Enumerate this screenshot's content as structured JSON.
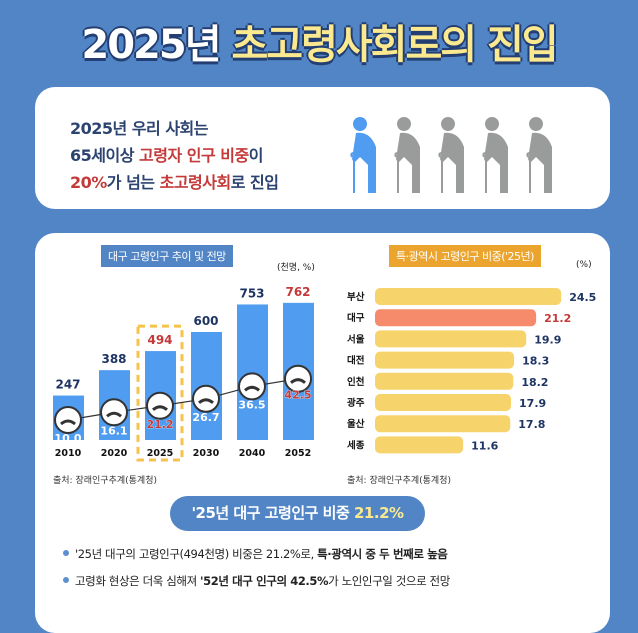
{
  "title": {
    "part1": "2025년",
    "part2": "초고령사회로의 진입"
  },
  "intro": {
    "line1": "2025년 우리 사회는",
    "line2_a": "65세이상 ",
    "line2_b": "고령자 인구 비중",
    "line2_c": "이",
    "line3_a": "20%",
    "line3_b": "가 넘는 ",
    "line3_c": "초고령사회",
    "line3_d": "로 진입",
    "people_icons": [
      "elderly-person-icon-highlighted",
      "elderly-person-icon",
      "elderly-person-icon",
      "elderly-person-icon",
      "elderly-person-icon"
    ]
  },
  "colors": {
    "background": "#5185c5",
    "bar_blue": "#4f9cf0",
    "bar_yellow": "#f7d36b",
    "bar_highlight": "#f58b6b",
    "highlight_red": "#c43a3a",
    "navy": "#1e3564"
  },
  "chart_data": [
    {
      "type": "bar",
      "title": "대구 고령인구 추이 및 전망",
      "unit": "(천명, %)",
      "categories": [
        "2010",
        "2020",
        "2025",
        "2030",
        "2040",
        "2052"
      ],
      "series": [
        {
          "values": [
            247,
            388,
            494,
            600,
            753,
            762
          ]
        },
        {
          "values": [
            10.0,
            16.1,
            21.2,
            26.7,
            36.5,
            42.5
          ],
          "type": "line"
        }
      ],
      "highlight_category": "2025",
      "source": "출처: 장래인구추계(통계청)"
    },
    {
      "type": "bar",
      "orientation": "horizontal",
      "title": "특·광역시 고령인구 비중('25년)",
      "unit": "(%)",
      "categories": [
        "부산",
        "대구",
        "서울",
        "대전",
        "인천",
        "광주",
        "울산",
        "세종"
      ],
      "values": [
        24.5,
        21.2,
        19.9,
        18.3,
        18.2,
        17.9,
        17.8,
        11.6
      ],
      "highlight_category": "대구",
      "source": "출처: 장래인구추계(통계청)"
    }
  ],
  "summary": {
    "text": "'25년 대구 고령인구 비중 ",
    "value": "21.2%"
  },
  "bullets": [
    {
      "a": "'25년 대구의 고령인구(494천명) 비중은 21.2%로, ",
      "b": "특·광역시 중 두 번째로 높음"
    },
    {
      "a": "고령화 현상은 더욱 심해져 ",
      "b": "'52년 대구 인구의 42.5%",
      "c": "가 노인인구일 것으로 전망"
    }
  ]
}
